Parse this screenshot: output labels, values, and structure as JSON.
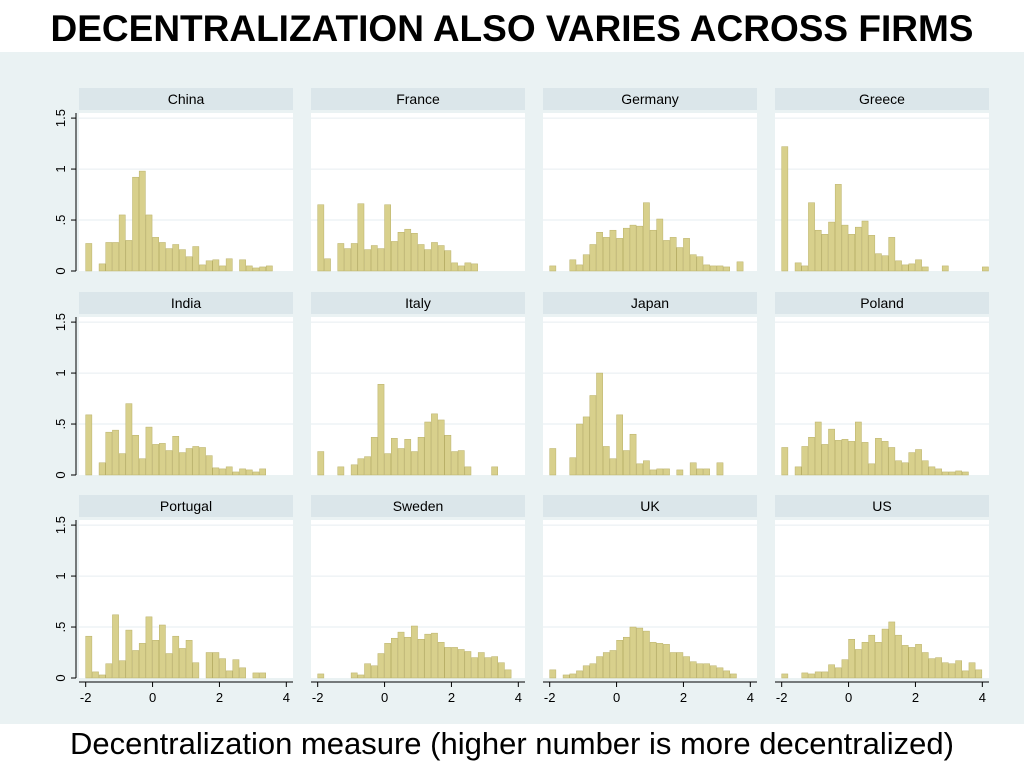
{
  "header": {
    "title": "DECENTRALIZATION ALSO VARIES ACROSS FIRMS"
  },
  "footer": {
    "caption": "Decentralization measure (higher number is more decentralized)"
  },
  "colors": {
    "bar_fill": "#d8d08c",
    "bar_stroke": "#b9b068",
    "panel_header": "#dbe6ea",
    "figure_background": "#eaf2f3",
    "plot_background": "#ffffff",
    "grid": "#e6eef0"
  },
  "chart_data": {
    "type": "bar",
    "subtype": "histogram_small_multiples",
    "grid": true,
    "bin_width": 0.2,
    "x_ticks": [
      "-2",
      "0",
      "2",
      "4"
    ],
    "xlim": [
      -2.2,
      4.2
    ],
    "y_ticks": [
      "0",
      ".5",
      "1",
      "1.5"
    ],
    "ylim": [
      0,
      1.55
    ],
    "panels": [
      {
        "name": "China",
        "start": -2.0,
        "values": [
          0.27,
          0,
          0.07,
          0.28,
          0.28,
          0.55,
          0.3,
          0.92,
          0.98,
          0.55,
          0.33,
          0.28,
          0.22,
          0.26,
          0.21,
          0.14,
          0.24,
          0.06,
          0.1,
          0.11,
          0.05,
          0.12,
          0,
          0.11,
          0.05,
          0.03,
          0.04,
          0.05
        ]
      },
      {
        "name": "France",
        "start": -2.0,
        "values": [
          0.65,
          0.12,
          0,
          0.27,
          0.22,
          0.27,
          0.66,
          0.21,
          0.25,
          0.22,
          0.65,
          0.29,
          0.38,
          0.41,
          0.37,
          0.26,
          0.21,
          0.28,
          0.25,
          0.2,
          0.08,
          0.05,
          0.08,
          0.07
        ]
      },
      {
        "name": "Germany",
        "start": -2.0,
        "values": [
          0.05,
          0,
          0,
          0.11,
          0.06,
          0.16,
          0.26,
          0.38,
          0.33,
          0.4,
          0.32,
          0.42,
          0.45,
          0.44,
          0.67,
          0.4,
          0.51,
          0.3,
          0.33,
          0.23,
          0.32,
          0.16,
          0.14,
          0.06,
          0.05,
          0.05,
          0.04,
          0,
          0.09
        ]
      },
      {
        "name": "Greece",
        "start": -2.0,
        "values": [
          1.22,
          0,
          0.08,
          0.05,
          0.67,
          0.4,
          0.36,
          0.48,
          0.85,
          0.45,
          0.36,
          0.43,
          0.49,
          0.35,
          0.17,
          0.15,
          0.33,
          0.1,
          0.06,
          0.07,
          0.11,
          0.04,
          0,
          0,
          0.05,
          0,
          0,
          0,
          0,
          0,
          0.04
        ]
      },
      {
        "name": "India",
        "start": -2.0,
        "values": [
          0.59,
          0,
          0.12,
          0.42,
          0.44,
          0.21,
          0.7,
          0.39,
          0.16,
          0.47,
          0.3,
          0.31,
          0.24,
          0.38,
          0.22,
          0.26,
          0.28,
          0.27,
          0.19,
          0.07,
          0.06,
          0.08,
          0.03,
          0.06,
          0.05,
          0.03,
          0.06
        ]
      },
      {
        "name": "Italy",
        "start": -2.0,
        "values": [
          0.23,
          0,
          0,
          0.08,
          0,
          0.1,
          0.16,
          0.18,
          0.37,
          0.89,
          0.21,
          0.36,
          0.26,
          0.35,
          0.23,
          0.37,
          0.52,
          0.6,
          0.54,
          0.39,
          0.23,
          0.24,
          0.08,
          0,
          0,
          0,
          0.08
        ]
      },
      {
        "name": "Japan",
        "start": -2.0,
        "values": [
          0.26,
          0,
          0,
          0.17,
          0.5,
          0.57,
          0.78,
          1.0,
          0.28,
          0.16,
          0.59,
          0.24,
          0.4,
          0.11,
          0.14,
          0.05,
          0.06,
          0.06,
          0,
          0.05,
          0,
          0.12,
          0.06,
          0.06,
          0,
          0.12
        ]
      },
      {
        "name": "Poland",
        "start": -2.0,
        "values": [
          0.27,
          0,
          0.08,
          0.28,
          0.37,
          0.52,
          0.3,
          0.45,
          0.34,
          0.35,
          0.33,
          0.52,
          0.32,
          0.11,
          0.36,
          0.33,
          0.27,
          0.14,
          0.12,
          0.22,
          0.25,
          0.14,
          0.08,
          0.06,
          0.03,
          0.03,
          0.04,
          0.03
        ]
      },
      {
        "name": "Portugal",
        "start": -2.0,
        "values": [
          0.41,
          0.06,
          0.03,
          0.14,
          0.62,
          0.17,
          0.47,
          0.27,
          0.34,
          0.6,
          0.37,
          0.52,
          0.24,
          0.41,
          0.29,
          0.37,
          0.15,
          0,
          0.25,
          0.25,
          0.19,
          0.07,
          0.18,
          0.1,
          0,
          0.05,
          0.05
        ]
      },
      {
        "name": "Sweden",
        "start": -2.0,
        "values": [
          0.04,
          0,
          0,
          0,
          0,
          0.05,
          0.03,
          0.14,
          0.12,
          0.24,
          0.34,
          0.39,
          0.45,
          0.4,
          0.51,
          0.38,
          0.43,
          0.44,
          0.35,
          0.3,
          0.3,
          0.28,
          0.26,
          0.2,
          0.25,
          0.2,
          0.21,
          0.15,
          0.08
        ]
      },
      {
        "name": "UK",
        "start": -2.0,
        "values": [
          0.08,
          0,
          0.03,
          0.04,
          0.07,
          0.12,
          0.14,
          0.21,
          0.25,
          0.27,
          0.37,
          0.4,
          0.5,
          0.49,
          0.46,
          0.35,
          0.34,
          0.33,
          0.25,
          0.25,
          0.21,
          0.16,
          0.14,
          0.14,
          0.12,
          0.1,
          0.07,
          0.04
        ]
      },
      {
        "name": "US",
        "start": -2.0,
        "values": [
          0.04,
          0,
          0,
          0.05,
          0.04,
          0.06,
          0.06,
          0.13,
          0.1,
          0.18,
          0.38,
          0.28,
          0.35,
          0.42,
          0.35,
          0.48,
          0.55,
          0.42,
          0.32,
          0.3,
          0.33,
          0.25,
          0.19,
          0.2,
          0.15,
          0.14,
          0.17,
          0.07,
          0.15,
          0.08
        ]
      }
    ]
  }
}
